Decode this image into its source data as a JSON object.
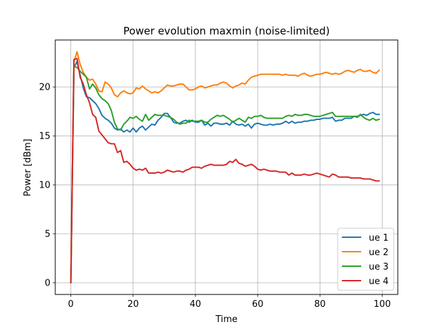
{
  "chart_data": {
    "type": "line",
    "title": "Power evolution maxmin (noise-limited)",
    "xlabel": "Time",
    "ylabel": "Power [dBm]",
    "xlim": [
      -5,
      105
    ],
    "ylim": [
      -1.2,
      24.8
    ],
    "xticks": [
      0,
      20,
      40,
      60,
      80,
      100
    ],
    "yticks": [
      0,
      5,
      10,
      15,
      20
    ],
    "grid": true,
    "legend_position": "lower-right",
    "x": [
      0,
      1,
      2,
      3,
      4,
      5,
      6,
      7,
      8,
      9,
      10,
      11,
      12,
      13,
      14,
      15,
      16,
      17,
      18,
      19,
      20,
      21,
      22,
      23,
      24,
      25,
      26,
      27,
      28,
      29,
      30,
      31,
      32,
      33,
      34,
      35,
      36,
      37,
      38,
      39,
      40,
      41,
      42,
      43,
      44,
      45,
      46,
      47,
      48,
      49,
      50,
      51,
      52,
      53,
      54,
      55,
      56,
      57,
      58,
      59,
      60,
      61,
      62,
      63,
      64,
      65,
      66,
      67,
      68,
      69,
      70,
      71,
      72,
      73,
      74,
      75,
      76,
      77,
      78,
      79,
      80,
      81,
      82,
      83,
      84,
      85,
      86,
      87,
      88,
      89,
      90,
      91,
      92,
      93,
      94,
      95,
      96,
      97,
      98,
      99
    ],
    "series": [
      {
        "name": "ue 1",
        "color": "#1f77b4",
        "values": [
          0,
          22.0,
          22.6,
          21.2,
          19.9,
          19.0,
          18.9,
          18.6,
          18.3,
          17.8,
          17.1,
          16.8,
          16.6,
          16.3,
          15.8,
          15.6,
          15.7,
          15.4,
          15.6,
          15.4,
          15.8,
          15.4,
          15.8,
          16.0,
          15.6,
          15.9,
          16.2,
          16.1,
          16.6,
          16.9,
          17.3,
          17.3,
          16.9,
          16.4,
          16.3,
          16.3,
          16.5,
          16.6,
          16.4,
          16.6,
          16.4,
          16.4,
          16.6,
          16.1,
          16.3,
          16.0,
          16.3,
          16.3,
          16.2,
          16.2,
          16.3,
          16.1,
          16.5,
          16.2,
          16.1,
          16.2,
          16.0,
          16.2,
          15.8,
          16.2,
          16.3,
          16.2,
          16.1,
          16.1,
          16.2,
          16.1,
          16.2,
          16.2,
          16.3,
          16.5,
          16.3,
          16.5,
          16.3,
          16.4,
          16.4,
          16.5,
          16.5,
          16.6,
          16.6,
          16.7,
          16.7,
          16.8,
          16.8,
          16.8,
          16.9,
          16.5,
          16.6,
          16.6,
          16.8,
          16.8,
          16.8,
          17.0,
          17.0,
          17.1,
          17.2,
          17.1,
          17.3,
          17.4,
          17.2,
          17.2
        ]
      },
      {
        "name": "ue 2",
        "color": "#ff7f0e",
        "values": [
          0,
          22.6,
          23.6,
          22.3,
          21.5,
          21.0,
          20.7,
          20.8,
          20.3,
          19.6,
          19.5,
          20.5,
          20.3,
          19.9,
          19.2,
          19.0,
          19.4,
          19.6,
          19.4,
          19.3,
          19.4,
          19.9,
          19.8,
          20.1,
          19.8,
          19.6,
          19.4,
          19.5,
          19.4,
          19.6,
          19.9,
          20.2,
          20.1,
          20.1,
          20.2,
          20.3,
          20.3,
          20.0,
          19.7,
          19.7,
          19.8,
          20.0,
          20.1,
          19.9,
          20.0,
          20.1,
          20.2,
          20.2,
          20.4,
          20.5,
          20.4,
          20.1,
          19.9,
          20.1,
          20.2,
          20.4,
          20.3,
          20.7,
          21.0,
          21.1,
          21.2,
          21.3,
          21.3,
          21.3,
          21.3,
          21.3,
          21.3,
          21.3,
          21.2,
          21.3,
          21.2,
          21.2,
          21.2,
          21.1,
          21.3,
          21.4,
          21.2,
          21.1,
          21.2,
          21.3,
          21.3,
          21.4,
          21.5,
          21.4,
          21.3,
          21.4,
          21.3,
          21.4,
          21.6,
          21.7,
          21.6,
          21.5,
          21.7,
          21.8,
          21.6,
          21.6,
          21.7,
          21.5,
          21.4,
          21.7
        ]
      },
      {
        "name": "ue 3",
        "color": "#2ca02c",
        "values": [
          0,
          22.1,
          22.0,
          21.6,
          21.3,
          21.0,
          19.8,
          20.3,
          19.9,
          19.2,
          18.8,
          18.6,
          18.3,
          17.6,
          16.4,
          15.7,
          15.6,
          16.2,
          16.5,
          16.9,
          16.8,
          17.0,
          16.7,
          16.5,
          17.2,
          16.6,
          16.9,
          17.2,
          17.1,
          17.1,
          17.1,
          17.0,
          16.9,
          16.7,
          16.4,
          16.2,
          16.3,
          16.3,
          16.6,
          16.5,
          16.5,
          16.5,
          16.6,
          16.4,
          16.4,
          16.7,
          16.9,
          17.1,
          17.0,
          17.1,
          16.9,
          16.7,
          16.4,
          16.6,
          16.8,
          16.6,
          16.4,
          16.9,
          16.8,
          17.0,
          17.0,
          17.1,
          16.9,
          16.8,
          16.8,
          16.8,
          16.8,
          16.8,
          16.8,
          17.0,
          17.1,
          17.0,
          17.2,
          17.1,
          17.1,
          17.2,
          17.2,
          17.1,
          17.0,
          17.0,
          17.0,
          17.1,
          17.2,
          17.3,
          17.4,
          17.0,
          17.0,
          17.0,
          17.0,
          17.0,
          17.0,
          17.0,
          16.9,
          17.2,
          16.9,
          16.7,
          16.6,
          16.8,
          16.6,
          16.7
        ]
      },
      {
        "name": "ue 4",
        "color": "#d62728",
        "values": [
          0,
          22.8,
          22.9,
          21.0,
          20.3,
          19.2,
          18.4,
          17.2,
          16.9,
          15.5,
          15.1,
          14.7,
          14.3,
          14.2,
          14.2,
          13.3,
          13.5,
          12.3,
          12.4,
          12.1,
          11.7,
          11.5,
          11.6,
          11.5,
          11.7,
          11.2,
          11.2,
          11.2,
          11.3,
          11.2,
          11.3,
          11.5,
          11.4,
          11.3,
          11.4,
          11.4,
          11.3,
          11.5,
          11.6,
          11.8,
          11.8,
          11.8,
          11.7,
          11.9,
          12.0,
          12.1,
          12.0,
          12.0,
          12.0,
          12.0,
          12.1,
          12.4,
          12.3,
          12.6,
          12.2,
          12.1,
          11.9,
          12.0,
          12.1,
          11.9,
          11.6,
          11.5,
          11.6,
          11.5,
          11.4,
          11.4,
          11.4,
          11.3,
          11.3,
          11.3,
          11.0,
          11.2,
          11.0,
          11.0,
          11.0,
          11.1,
          11.0,
          11.0,
          11.1,
          11.2,
          11.1,
          11.0,
          10.9,
          10.8,
          11.1,
          11.0,
          10.8,
          10.8,
          10.8,
          10.8,
          10.7,
          10.7,
          10.7,
          10.7,
          10.6,
          10.6,
          10.6,
          10.5,
          10.4,
          10.4
        ]
      }
    ]
  }
}
